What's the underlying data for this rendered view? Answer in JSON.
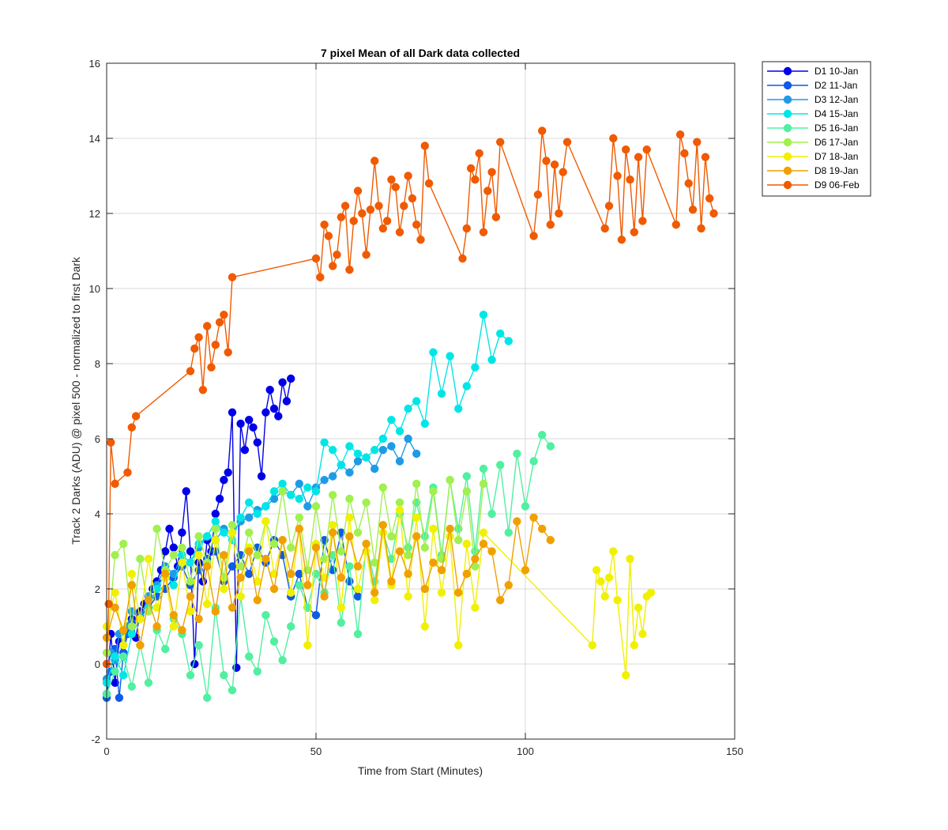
{
  "chart_data": {
    "type": "line",
    "title": "7 pixel Mean of all Dark data collected",
    "xlabel": "Time from Start (Minutes)",
    "ylabel": "Track 2 Darks (ADU) @ pixel 500 - normalized to first Dark",
    "xlim": [
      0,
      150
    ],
    "ylim": [
      -2,
      16
    ],
    "xticks": [
      0,
      50,
      100,
      150
    ],
    "yticks": [
      -2,
      0,
      2,
      4,
      6,
      8,
      10,
      12,
      14,
      16
    ],
    "grid": true,
    "legend_position": "outside-top-right",
    "markers": "filled-circle",
    "series": [
      {
        "name": "D1 10-Jan",
        "color": "#0000E6",
        "x": [
          0,
          1,
          2,
          3,
          4,
          5,
          6,
          7,
          8,
          9,
          10,
          11,
          12,
          13,
          14,
          15,
          16,
          17,
          18,
          19,
          20,
          21,
          22,
          23,
          24,
          25,
          26,
          27,
          28,
          29,
          30,
          31,
          32,
          33,
          34,
          35,
          36,
          37,
          38,
          39,
          40,
          41,
          42,
          43,
          44
        ],
        "y": [
          -0.8,
          0.8,
          -0.5,
          0.6,
          0.2,
          0.9,
          1.2,
          0.7,
          1.4,
          1.6,
          1.8,
          2.0,
          2.2,
          2.5,
          3.0,
          3.6,
          3.1,
          2.6,
          3.5,
          4.6,
          3.0,
          0.0,
          2.7,
          2.2,
          3.3,
          3.0,
          4.0,
          4.4,
          4.9,
          5.1,
          6.7,
          -0.1,
          6.4,
          5.7,
          6.5,
          6.3,
          5.9,
          5.0,
          6.7,
          7.3,
          6.8,
          6.6,
          7.5,
          7.0,
          7.6
        ]
      },
      {
        "name": "D2 11-Jan",
        "color": "#0F5AE6",
        "x": [
          0,
          1,
          2,
          3,
          4,
          5,
          6,
          8,
          10,
          12,
          14,
          16,
          18,
          20,
          22,
          24,
          26,
          28,
          30,
          32,
          34,
          36,
          38,
          40,
          42,
          44,
          46,
          48,
          50,
          52,
          54,
          56,
          58,
          60
        ],
        "y": [
          -0.9,
          -0.2,
          0.4,
          -0.9,
          0.3,
          0.8,
          1.1,
          1.3,
          1.5,
          1.8,
          2.0,
          2.3,
          2.6,
          2.1,
          2.5,
          2.8,
          3.0,
          2.2,
          2.6,
          2.9,
          2.4,
          3.1,
          2.7,
          3.3,
          2.9,
          1.8,
          2.4,
          1.5,
          1.3,
          3.3,
          2.5,
          3.5,
          2.2,
          1.8
        ]
      },
      {
        "name": "D3 12-Jan",
        "color": "#1E9BE6",
        "x": [
          0,
          1,
          2,
          3,
          4,
          5,
          6,
          8,
          10,
          12,
          14,
          16,
          18,
          20,
          22,
          24,
          26,
          28,
          30,
          32,
          34,
          36,
          38,
          40,
          42,
          44,
          46,
          48,
          50,
          52,
          54,
          56,
          58,
          60,
          62,
          64,
          66,
          68,
          70,
          72,
          74
        ],
        "y": [
          -0.4,
          0.3,
          0.1,
          0.8,
          0.5,
          1.0,
          1.4,
          1.2,
          1.8,
          2.1,
          2.6,
          2.4,
          2.9,
          2.7,
          3.1,
          3.4,
          3.3,
          3.6,
          3.5,
          3.8,
          3.9,
          4.1,
          4.2,
          4.4,
          4.6,
          4.5,
          4.8,
          4.2,
          4.7,
          4.9,
          5.0,
          5.3,
          5.1,
          5.4,
          5.5,
          5.2,
          5.7,
          5.8,
          5.4,
          6.0,
          5.6
        ]
      },
      {
        "name": "D4 15-Jan",
        "color": "#00E6E6",
        "x": [
          0,
          2,
          4,
          6,
          8,
          10,
          12,
          14,
          16,
          18,
          20,
          22,
          24,
          26,
          28,
          30,
          32,
          34,
          36,
          38,
          40,
          42,
          44,
          46,
          48,
          50,
          52,
          54,
          56,
          58,
          60,
          62,
          64,
          66,
          68,
          70,
          72,
          74,
          76,
          78,
          80,
          82,
          84,
          86,
          88,
          90,
          92,
          94,
          96
        ],
        "y": [
          -0.5,
          0.2,
          -0.3,
          0.8,
          1.2,
          1.5,
          2.0,
          2.4,
          2.1,
          2.9,
          2.7,
          3.2,
          3.4,
          3.8,
          3.5,
          3.3,
          3.9,
          4.3,
          4.0,
          4.2,
          4.6,
          4.8,
          4.5,
          4.4,
          4.7,
          4.6,
          5.9,
          5.7,
          5.3,
          5.8,
          5.6,
          5.5,
          5.7,
          6.0,
          6.5,
          6.2,
          6.8,
          7.0,
          6.4,
          8.3,
          7.2,
          8.2,
          6.8,
          7.4,
          7.9,
          9.3,
          8.1,
          8.8,
          8.6
        ]
      },
      {
        "name": "D5 16-Jan",
        "color": "#50F0A0",
        "x": [
          0,
          2,
          4,
          6,
          8,
          10,
          12,
          14,
          16,
          18,
          20,
          22,
          24,
          26,
          28,
          30,
          32,
          34,
          36,
          38,
          40,
          42,
          44,
          46,
          48,
          50,
          52,
          54,
          56,
          58,
          60,
          62,
          64,
          66,
          68,
          70,
          72,
          74,
          76,
          78,
          80,
          82,
          84,
          86,
          88,
          90,
          92,
          94,
          96,
          98,
          100,
          102,
          104,
          106
        ],
        "y": [
          -0.8,
          -0.2,
          0.2,
          -0.6,
          0.5,
          -0.5,
          0.9,
          0.4,
          1.2,
          0.8,
          -0.3,
          0.5,
          -0.9,
          1.5,
          -0.3,
          -0.7,
          1.8,
          0.2,
          -0.2,
          1.3,
          0.6,
          0.1,
          1.0,
          2.1,
          1.5,
          2.4,
          1.9,
          2.9,
          1.1,
          2.6,
          0.8,
          3.2,
          2.2,
          3.5,
          2.8,
          4.0,
          3.1,
          4.3,
          3.4,
          4.7,
          2.9,
          4.9,
          3.6,
          5.0,
          3.0,
          5.2,
          4.0,
          5.3,
          3.5,
          5.6,
          4.2,
          5.4,
          6.1,
          5.8
        ]
      },
      {
        "name": "D6 17-Jan",
        "color": "#A0F050",
        "x": [
          0,
          2,
          4,
          6,
          8,
          10,
          12,
          14,
          16,
          18,
          20,
          22,
          24,
          26,
          28,
          30,
          32,
          34,
          36,
          38,
          40,
          42,
          44,
          46,
          48,
          50,
          52,
          54,
          56,
          58,
          60,
          62,
          64,
          66,
          68,
          70,
          72,
          74,
          76,
          78,
          80,
          82,
          84,
          86,
          88,
          90
        ],
        "y": [
          0.3,
          2.9,
          3.2,
          1.0,
          2.8,
          1.4,
          3.6,
          2.5,
          2.9,
          3.1,
          2.2,
          3.4,
          2.7,
          3.6,
          2.3,
          3.7,
          2.6,
          3.5,
          2.9,
          3.8,
          3.2,
          4.6,
          3.1,
          3.9,
          2.5,
          4.2,
          2.8,
          4.5,
          3.0,
          4.4,
          3.5,
          4.3,
          2.7,
          4.7,
          3.4,
          4.3,
          2.9,
          4.8,
          3.1,
          4.6,
          2.8,
          4.9,
          3.3,
          4.6,
          2.6,
          4.8
        ]
      },
      {
        "name": "D7 18-Jan",
        "color": "#F0F000",
        "x": [
          0,
          2,
          4,
          6,
          8,
          10,
          12,
          14,
          16,
          18,
          20,
          22,
          24,
          26,
          28,
          30,
          32,
          34,
          36,
          38,
          40,
          42,
          44,
          46,
          48,
          50,
          52,
          54,
          56,
          58,
          60,
          62,
          64,
          66,
          68,
          70,
          72,
          74,
          76,
          78,
          80,
          82,
          84,
          86,
          88,
          90,
          116,
          117,
          118,
          119,
          120,
          121,
          122,
          124,
          125,
          126,
          127,
          128,
          129,
          130
        ],
        "y": [
          1.0,
          1.9,
          0.5,
          2.4,
          1.2,
          2.8,
          1.5,
          2.3,
          1.0,
          2.7,
          1.4,
          2.9,
          1.6,
          3.3,
          2.0,
          3.5,
          1.8,
          3.1,
          2.2,
          3.8,
          2.4,
          3.3,
          1.9,
          3.6,
          0.5,
          3.2,
          2.3,
          3.7,
          1.5,
          3.9,
          2.0,
          3.0,
          1.7,
          3.5,
          2.1,
          4.1,
          1.8,
          3.9,
          1.0,
          3.6,
          1.9,
          3.4,
          0.5,
          3.2,
          1.5,
          3.5,
          0.5,
          2.5,
          2.2,
          1.8,
          2.3,
          3.0,
          1.7,
          -0.3,
          2.8,
          0.5,
          1.5,
          0.8,
          1.8,
          1.9
        ]
      },
      {
        "name": "D8 19-Jan",
        "color": "#F0A000",
        "x": [
          0,
          2,
          4,
          6,
          8,
          10,
          12,
          14,
          16,
          18,
          20,
          22,
          24,
          26,
          28,
          30,
          32,
          34,
          36,
          38,
          40,
          42,
          44,
          46,
          48,
          50,
          52,
          54,
          56,
          58,
          60,
          62,
          64,
          66,
          68,
          70,
          72,
          74,
          76,
          78,
          80,
          82,
          84,
          86,
          88,
          90,
          92,
          94,
          96,
          98,
          100,
          102,
          104,
          106
        ],
        "y": [
          0.7,
          1.5,
          0.9,
          2.1,
          0.5,
          1.7,
          1.0,
          2.4,
          1.3,
          0.9,
          1.8,
          1.2,
          2.6,
          1.4,
          2.9,
          1.5,
          2.3,
          3.0,
          1.7,
          2.8,
          2.0,
          3.3,
          2.4,
          3.6,
          2.1,
          3.1,
          1.8,
          3.5,
          2.3,
          3.4,
          2.6,
          3.2,
          1.9,
          3.7,
          2.2,
          3.0,
          2.4,
          3.4,
          2.0,
          2.7,
          2.5,
          3.6,
          1.9,
          2.4,
          2.8,
          3.2,
          3.0,
          1.7,
          2.1,
          3.8,
          2.5,
          3.9,
          3.6,
          3.3
        ]
      },
      {
        "name": "D9 06-Feb",
        "color": "#F05A00",
        "x": [
          0,
          0.5,
          1,
          2,
          5,
          6,
          7,
          20,
          21,
          22,
          23,
          24,
          25,
          26,
          27,
          28,
          29,
          30,
          50,
          51,
          52,
          53,
          54,
          55,
          56,
          57,
          58,
          59,
          60,
          61,
          62,
          63,
          64,
          65,
          66,
          67,
          68,
          69,
          70,
          71,
          72,
          73,
          74,
          75,
          76,
          77,
          85,
          86,
          87,
          88,
          89,
          90,
          91,
          92,
          93,
          94,
          102,
          103,
          104,
          105,
          106,
          107,
          108,
          109,
          110,
          119,
          120,
          121,
          122,
          123,
          124,
          125,
          126,
          127,
          128,
          129,
          136,
          137,
          138,
          139,
          140,
          141,
          142,
          143,
          144,
          145
        ],
        "y": [
          0.0,
          1.6,
          5.9,
          4.8,
          5.1,
          6.3,
          6.6,
          7.8,
          8.4,
          8.7,
          7.3,
          9.0,
          7.9,
          8.5,
          9.1,
          9.3,
          8.3,
          10.3,
          10.8,
          10.3,
          11.7,
          11.4,
          10.6,
          10.9,
          11.9,
          12.2,
          10.5,
          11.8,
          12.6,
          12.0,
          10.9,
          12.1,
          13.4,
          12.2,
          11.6,
          11.8,
          12.9,
          12.7,
          11.5,
          12.2,
          13.0,
          12.4,
          11.7,
          11.3,
          13.8,
          12.8,
          10.8,
          11.6,
          13.2,
          12.9,
          13.6,
          11.5,
          12.6,
          13.1,
          11.9,
          13.9,
          11.4,
          12.5,
          14.2,
          13.4,
          11.7,
          13.3,
          12.0,
          13.1,
          13.9,
          11.6,
          12.2,
          14.0,
          13.0,
          11.3,
          13.7,
          12.9,
          11.5,
          13.5,
          11.8,
          13.7,
          11.7,
          14.1,
          13.6,
          12.8,
          12.1,
          13.9,
          11.6,
          13.5,
          12.4,
          12.0
        ]
      }
    ]
  }
}
